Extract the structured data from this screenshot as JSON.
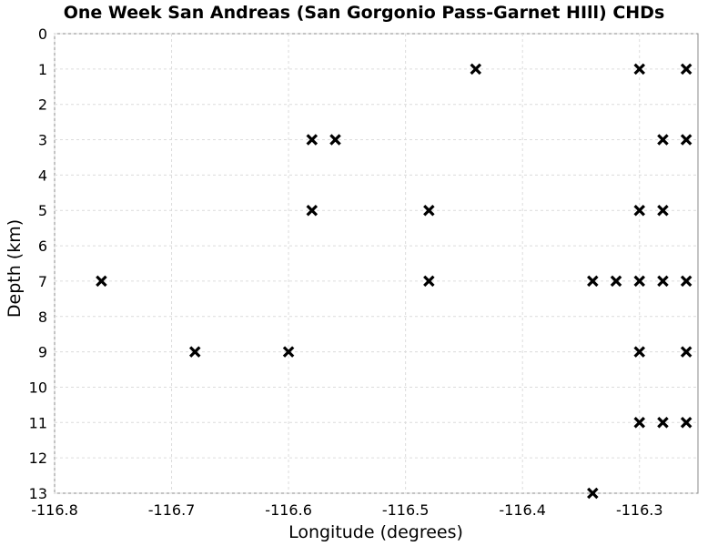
{
  "chart_data": {
    "type": "scatter",
    "title": "One Week San Andreas (San Gorgonio Pass-Garnet HIll) CHDs",
    "xlabel": "Longitude (degrees)",
    "ylabel": "Depth (km)",
    "xlim": [
      -116.8,
      -116.25
    ],
    "ylim": [
      0,
      13
    ],
    "y_inverted": true,
    "grid": true,
    "legend": "none",
    "marker": "x",
    "marker_color": "#000000",
    "x_ticks": [
      "-116.8",
      "-116.7",
      "-116.6",
      "-116.5",
      "-116.4",
      "-116.3"
    ],
    "x_tick_values": [
      -116.8,
      -116.7,
      -116.6,
      -116.5,
      -116.4,
      -116.3
    ],
    "y_ticks": [
      "0",
      "1",
      "2",
      "3",
      "4",
      "5",
      "6",
      "7",
      "8",
      "9",
      "10",
      "11",
      "12",
      "13"
    ],
    "y_tick_values": [
      0,
      1,
      2,
      3,
      4,
      5,
      6,
      7,
      8,
      9,
      10,
      11,
      12,
      13
    ],
    "points": [
      {
        "x": -116.44,
        "y": 1
      },
      {
        "x": -116.3,
        "y": 1
      },
      {
        "x": -116.26,
        "y": 1
      },
      {
        "x": -116.58,
        "y": 3
      },
      {
        "x": -116.56,
        "y": 3
      },
      {
        "x": -116.28,
        "y": 3
      },
      {
        "x": -116.26,
        "y": 3
      },
      {
        "x": -116.58,
        "y": 5
      },
      {
        "x": -116.48,
        "y": 5
      },
      {
        "x": -116.3,
        "y": 5
      },
      {
        "x": -116.28,
        "y": 5
      },
      {
        "x": -116.76,
        "y": 7
      },
      {
        "x": -116.48,
        "y": 7
      },
      {
        "x": -116.34,
        "y": 7
      },
      {
        "x": -116.32,
        "y": 7
      },
      {
        "x": -116.3,
        "y": 7
      },
      {
        "x": -116.28,
        "y": 7
      },
      {
        "x": -116.26,
        "y": 7
      },
      {
        "x": -116.68,
        "y": 9
      },
      {
        "x": -116.6,
        "y": 9
      },
      {
        "x": -116.3,
        "y": 9
      },
      {
        "x": -116.26,
        "y": 9
      },
      {
        "x": -116.3,
        "y": 11
      },
      {
        "x": -116.28,
        "y": 11
      },
      {
        "x": -116.26,
        "y": 11
      },
      {
        "x": -116.34,
        "y": 13
      }
    ]
  }
}
